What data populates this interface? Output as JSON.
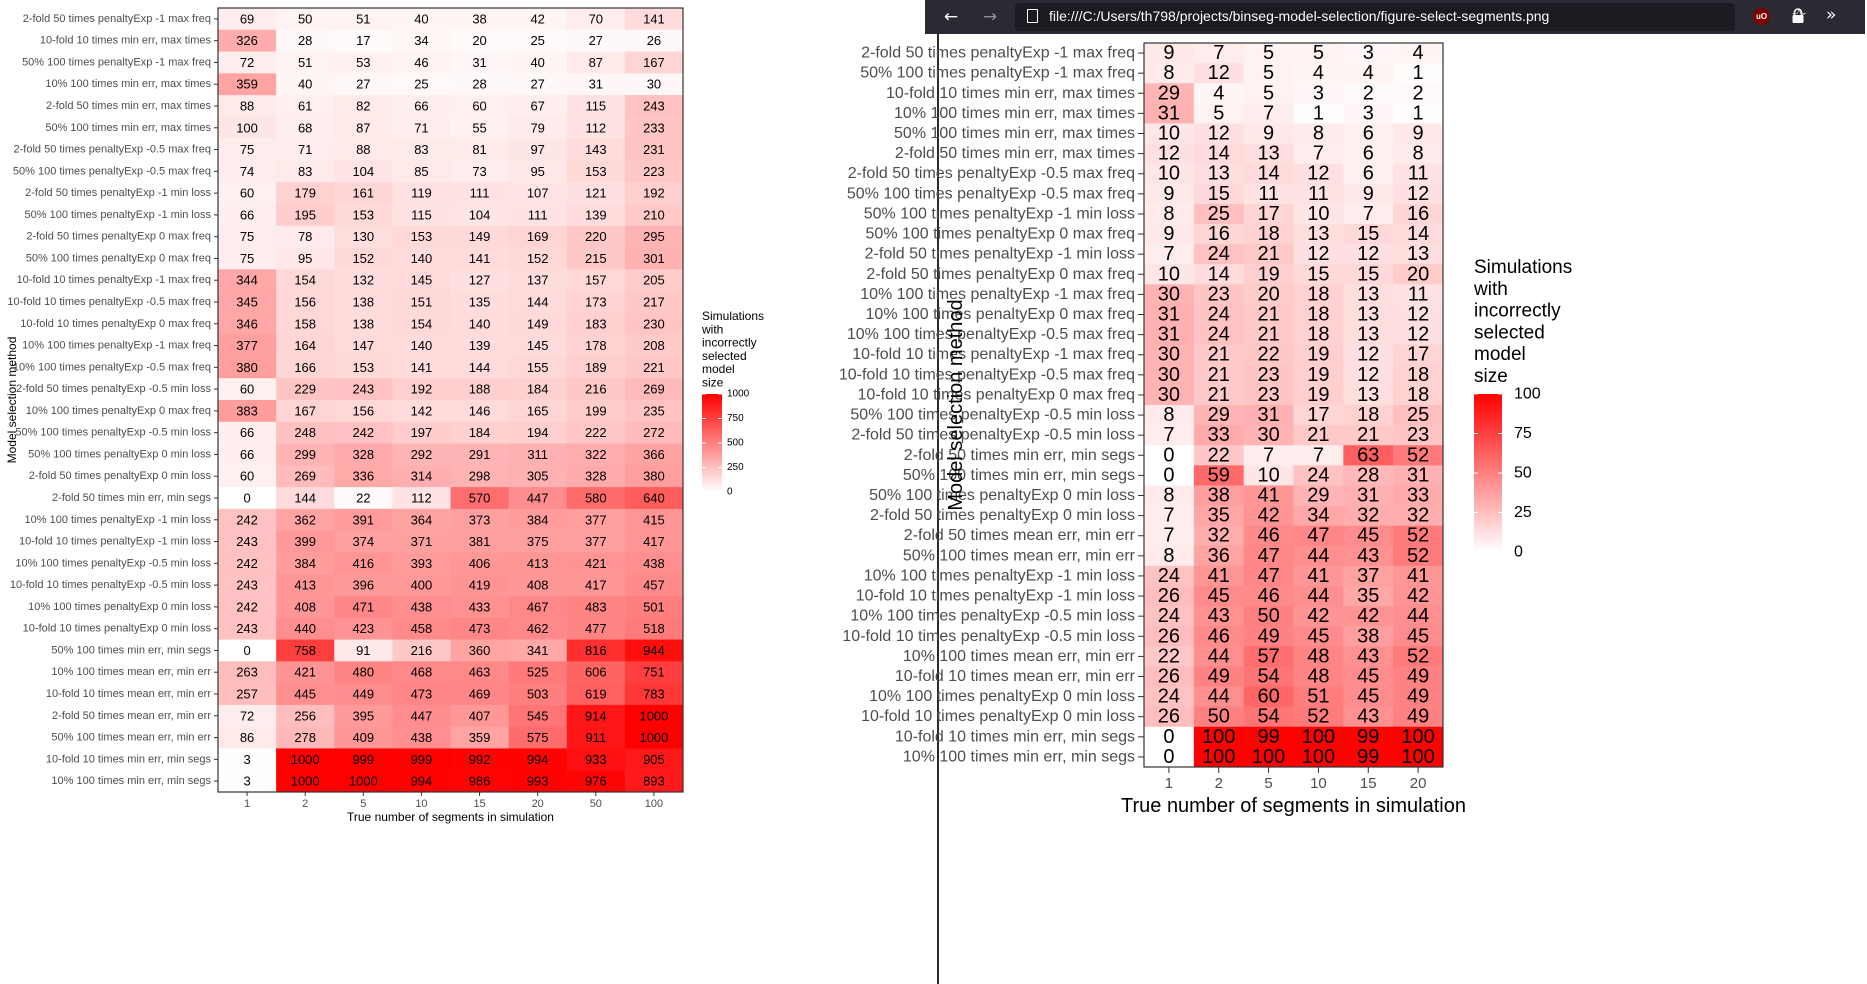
{
  "browser": {
    "url": "file:///C:/Users/th798/projects/binseg-model-selection/figure-select-segments.png",
    "icons": [
      "back-arrow-icon",
      "forward-arrow-icon",
      "file-icon",
      "bookmark-star-icon",
      "ublock-icon",
      "lock-icon",
      "overflow-chevrons-icon"
    ]
  },
  "chart_data": [
    {
      "type": "heatmap",
      "title": "",
      "xlabel": "True number of segments in simulation",
      "ylabel": "Model selection method",
      "legend_title": "Simulations\nwith\nincorrectly\nselected\nmodel\nsize",
      "legend_ticks": [
        "1000",
        "750",
        "500",
        "250",
        "0"
      ],
      "legend_max": 1000,
      "legend_placement": "right",
      "color_low": "#ffffff",
      "color_high": "#ff0000",
      "x": [
        "1",
        "2",
        "5",
        "10",
        "15",
        "20",
        "50",
        "100"
      ],
      "rows": [
        {
          "label": "2-fold 50 times penaltyExp -1 max freq",
          "values": [
            69,
            50,
            51,
            40,
            38,
            42,
            70,
            141
          ]
        },
        {
          "label": "10-fold 10 times min err, max times",
          "values": [
            326,
            28,
            17,
            34,
            20,
            25,
            27,
            26
          ]
        },
        {
          "label": "50% 100 times penaltyExp -1 max freq",
          "values": [
            72,
            51,
            53,
            46,
            31,
            40,
            87,
            167
          ]
        },
        {
          "label": "10% 100 times min err, max times",
          "values": [
            359,
            40,
            27,
            25,
            28,
            27,
            31,
            30
          ]
        },
        {
          "label": "2-fold 50 times min err, max times",
          "values": [
            88,
            61,
            82,
            66,
            60,
            67,
            115,
            243
          ]
        },
        {
          "label": "50% 100 times min err, max times",
          "values": [
            100,
            68,
            87,
            71,
            55,
            79,
            112,
            233
          ]
        },
        {
          "label": "2-fold 50 times penaltyExp -0.5 max freq",
          "values": [
            75,
            71,
            88,
            83,
            81,
            97,
            143,
            231
          ]
        },
        {
          "label": "50% 100 times penaltyExp -0.5 max freq",
          "values": [
            74,
            83,
            104,
            85,
            73,
            95,
            153,
            223
          ]
        },
        {
          "label": "2-fold 50 times penaltyExp -1 min loss",
          "values": [
            60,
            179,
            161,
            119,
            111,
            107,
            121,
            192
          ]
        },
        {
          "label": "50% 100 times penaltyExp -1 min loss",
          "values": [
            66,
            195,
            153,
            115,
            104,
            111,
            139,
            210
          ]
        },
        {
          "label": "2-fold 50 times penaltyExp 0 max freq",
          "values": [
            75,
            78,
            130,
            153,
            149,
            169,
            220,
            295
          ]
        },
        {
          "label": "50% 100 times penaltyExp 0 max freq",
          "values": [
            75,
            95,
            152,
            140,
            141,
            152,
            215,
            301
          ]
        },
        {
          "label": "10-fold 10 times penaltyExp -1 max freq",
          "values": [
            344,
            154,
            132,
            145,
            127,
            137,
            157,
            205
          ]
        },
        {
          "label": "10-fold 10 times penaltyExp -0.5 max freq",
          "values": [
            345,
            156,
            138,
            151,
            135,
            144,
            173,
            217
          ]
        },
        {
          "label": "10-fold 10 times penaltyExp 0 max freq",
          "values": [
            346,
            158,
            138,
            154,
            140,
            149,
            183,
            230
          ]
        },
        {
          "label": "10% 100 times penaltyExp -1 max freq",
          "values": [
            377,
            164,
            147,
            140,
            139,
            145,
            178,
            208
          ]
        },
        {
          "label": "10% 100 times penaltyExp -0.5 max freq",
          "values": [
            380,
            166,
            153,
            141,
            144,
            155,
            189,
            221
          ]
        },
        {
          "label": "2-fold 50 times penaltyExp -0.5 min loss",
          "values": [
            60,
            229,
            243,
            192,
            188,
            184,
            216,
            269
          ]
        },
        {
          "label": "10% 100 times penaltyExp 0 max freq",
          "values": [
            383,
            167,
            156,
            142,
            146,
            165,
            199,
            235
          ]
        },
        {
          "label": "50% 100 times penaltyExp -0.5 min loss",
          "values": [
            66,
            248,
            242,
            197,
            184,
            194,
            222,
            272
          ]
        },
        {
          "label": "50% 100 times penaltyExp 0 min loss",
          "values": [
            66,
            299,
            328,
            292,
            291,
            311,
            322,
            366
          ]
        },
        {
          "label": "2-fold 50 times penaltyExp 0 min loss",
          "values": [
            60,
            269,
            336,
            314,
            298,
            305,
            328,
            380
          ]
        },
        {
          "label": "2-fold 50 times min err, min segs",
          "values": [
            0,
            144,
            22,
            112,
            570,
            447,
            580,
            640
          ]
        },
        {
          "label": "10% 100 times penaltyExp -1 min loss",
          "values": [
            242,
            362,
            391,
            364,
            373,
            384,
            377,
            415
          ]
        },
        {
          "label": "10-fold 10 times penaltyExp -1 min loss",
          "values": [
            243,
            399,
            374,
            371,
            381,
            375,
            377,
            417
          ]
        },
        {
          "label": "10% 100 times penaltyExp -0.5 min loss",
          "values": [
            242,
            384,
            416,
            393,
            406,
            413,
            421,
            438
          ]
        },
        {
          "label": "10-fold 10 times penaltyExp -0.5 min loss",
          "values": [
            243,
            413,
            396,
            400,
            419,
            408,
            417,
            457
          ]
        },
        {
          "label": "10% 100 times penaltyExp 0 min loss",
          "values": [
            242,
            408,
            471,
            438,
            433,
            467,
            483,
            501
          ]
        },
        {
          "label": "10-fold 10 times penaltyExp 0 min loss",
          "values": [
            243,
            440,
            423,
            458,
            473,
            462,
            477,
            518
          ]
        },
        {
          "label": "50% 100 times min err, min segs",
          "values": [
            0,
            758,
            91,
            216,
            360,
            341,
            816,
            944
          ]
        },
        {
          "label": "10% 100 times mean err, min err",
          "values": [
            263,
            421,
            480,
            468,
            463,
            525,
            606,
            751
          ]
        },
        {
          "label": "10-fold 10 times mean err, min err",
          "values": [
            257,
            445,
            449,
            473,
            469,
            503,
            619,
            783
          ]
        },
        {
          "label": "2-fold 50 times mean err, min err",
          "values": [
            72,
            256,
            395,
            447,
            407,
            545,
            914,
            1000
          ]
        },
        {
          "label": "50% 100 times mean err, min err",
          "values": [
            86,
            278,
            409,
            438,
            359,
            575,
            911,
            1000
          ]
        },
        {
          "label": "10-fold 10 times min err, min segs",
          "values": [
            3,
            1000,
            999,
            999,
            992,
            994,
            933,
            905
          ]
        },
        {
          "label": "10% 100 times min err, min segs",
          "values": [
            3,
            1000,
            1000,
            994,
            986,
            993,
            976,
            893
          ]
        }
      ]
    },
    {
      "type": "heatmap",
      "title": "",
      "xlabel": "True number of segments in simulation",
      "ylabel": "Model selection method",
      "legend_title": "Simulations\nwith\nincorrectly\nselected\nmodel\nsize",
      "legend_ticks": [
        "100",
        "75",
        "50",
        "25",
        "0"
      ],
      "legend_max": 100,
      "legend_placement": "right",
      "color_low": "#ffffff",
      "color_high": "#ff0000",
      "x": [
        "1",
        "2",
        "5",
        "10",
        "15",
        "20"
      ],
      "rows": [
        {
          "label": "2-fold 50 times penaltyExp -1 max freq",
          "values": [
            9,
            7,
            5,
            5,
            3,
            4
          ]
        },
        {
          "label": "50% 100 times penaltyExp -1 max freq",
          "values": [
            8,
            12,
            5,
            4,
            4,
            1
          ]
        },
        {
          "label": "10-fold 10 times min err, max times",
          "values": [
            29,
            4,
            5,
            3,
            2,
            2
          ]
        },
        {
          "label": "10% 100 times min err, max times",
          "values": [
            31,
            5,
            7,
            1,
            3,
            1
          ]
        },
        {
          "label": "50% 100 times min err, max times",
          "values": [
            10,
            12,
            9,
            8,
            6,
            9
          ]
        },
        {
          "label": "2-fold 50 times min err, max times",
          "values": [
            12,
            14,
            13,
            7,
            6,
            8
          ]
        },
        {
          "label": "2-fold 50 times penaltyExp -0.5 max freq",
          "values": [
            10,
            13,
            14,
            12,
            6,
            11
          ]
        },
        {
          "label": "50% 100 times penaltyExp -0.5 max freq",
          "values": [
            9,
            15,
            11,
            11,
            9,
            12
          ]
        },
        {
          "label": "50% 100 times penaltyExp -1 min loss",
          "values": [
            8,
            25,
            17,
            10,
            7,
            16
          ]
        },
        {
          "label": "50% 100 times penaltyExp 0 max freq",
          "values": [
            9,
            16,
            18,
            13,
            15,
            14
          ]
        },
        {
          "label": "2-fold 50 times penaltyExp -1 min loss",
          "values": [
            7,
            24,
            21,
            12,
            12,
            13
          ]
        },
        {
          "label": "2-fold 50 times penaltyExp 0 max freq",
          "values": [
            10,
            14,
            19,
            15,
            15,
            20
          ]
        },
        {
          "label": "10% 100 times penaltyExp -1 max freq",
          "values": [
            30,
            23,
            20,
            18,
            13,
            11
          ]
        },
        {
          "label": "10% 100 times penaltyExp 0 max freq",
          "values": [
            31,
            24,
            21,
            18,
            13,
            12
          ]
        },
        {
          "label": "10% 100 times penaltyExp -0.5 max freq",
          "values": [
            31,
            24,
            21,
            18,
            13,
            12
          ]
        },
        {
          "label": "10-fold 10 times penaltyExp -1 max freq",
          "values": [
            30,
            21,
            22,
            19,
            12,
            17
          ]
        },
        {
          "label": "10-fold 10 times penaltyExp -0.5 max freq",
          "values": [
            30,
            21,
            23,
            19,
            12,
            18
          ]
        },
        {
          "label": "10-fold 10 times penaltyExp 0 max freq",
          "values": [
            30,
            21,
            23,
            19,
            13,
            18
          ]
        },
        {
          "label": "50% 100 times penaltyExp -0.5 min loss",
          "values": [
            8,
            29,
            31,
            17,
            18,
            25
          ]
        },
        {
          "label": "2-fold 50 times penaltyExp -0.5 min loss",
          "values": [
            7,
            33,
            30,
            21,
            21,
            23
          ]
        },
        {
          "label": "2-fold 50 times min err, min segs",
          "values": [
            0,
            22,
            7,
            7,
            63,
            52
          ]
        },
        {
          "label": "50% 100 times min err, min segs",
          "values": [
            0,
            59,
            10,
            24,
            28,
            31
          ]
        },
        {
          "label": "50% 100 times penaltyExp 0 min loss",
          "values": [
            8,
            38,
            41,
            29,
            31,
            33
          ]
        },
        {
          "label": "2-fold 50 times penaltyExp 0 min loss",
          "values": [
            7,
            35,
            42,
            34,
            32,
            32
          ]
        },
        {
          "label": "2-fold 50 times mean err, min err",
          "values": [
            7,
            32,
            46,
            47,
            45,
            52
          ]
        },
        {
          "label": "50% 100 times mean err, min err",
          "values": [
            8,
            36,
            47,
            44,
            43,
            52
          ]
        },
        {
          "label": "10% 100 times penaltyExp -1 min loss",
          "values": [
            24,
            41,
            47,
            41,
            37,
            41
          ]
        },
        {
          "label": "10-fold 10 times penaltyExp -1 min loss",
          "values": [
            26,
            45,
            46,
            44,
            35,
            42
          ]
        },
        {
          "label": "10% 100 times penaltyExp -0.5 min loss",
          "values": [
            24,
            43,
            50,
            42,
            42,
            44
          ]
        },
        {
          "label": "10-fold 10 times penaltyExp -0.5 min loss",
          "values": [
            26,
            46,
            49,
            45,
            38,
            45
          ]
        },
        {
          "label": "10% 100 times mean err, min err",
          "values": [
            22,
            44,
            57,
            48,
            43,
            52
          ]
        },
        {
          "label": "10-fold 10 times mean err, min err",
          "values": [
            26,
            49,
            54,
            48,
            45,
            49
          ]
        },
        {
          "label": "10% 100 times penaltyExp 0 min loss",
          "values": [
            24,
            44,
            60,
            51,
            45,
            49
          ]
        },
        {
          "label": "10-fold 10 times penaltyExp 0 min loss",
          "values": [
            26,
            50,
            54,
            52,
            43,
            49
          ]
        },
        {
          "label": "10-fold 10 times min err, min segs",
          "values": [
            0,
            100,
            99,
            100,
            99,
            100
          ]
        },
        {
          "label": "10% 100 times min err, min segs",
          "values": [
            0,
            100,
            100,
            100,
            99,
            100
          ]
        }
      ]
    }
  ]
}
